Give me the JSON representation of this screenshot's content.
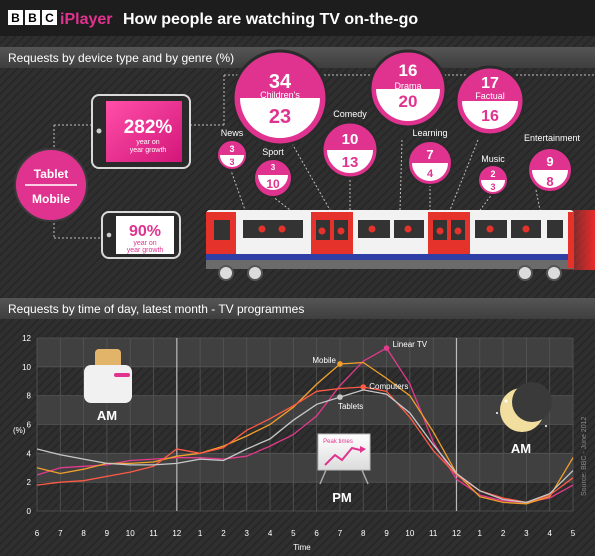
{
  "header": {
    "bbc": [
      "B",
      "B",
      "C"
    ],
    "iplayer": "iPlayer",
    "title": "How people are watching TV on-the-go"
  },
  "section1": {
    "title": "Requests by device type and by genre  (%)",
    "tablet_growth": {
      "value": "282%",
      "caption_1": "year on",
      "caption_2": "year growth"
    },
    "mobile_growth": {
      "value": "90%",
      "caption_1": "year on",
      "caption_2": "year growth"
    },
    "legend": {
      "tablet": "Tablet",
      "mobile": "Mobile"
    }
  },
  "genres": [
    {
      "name": "Children's",
      "tablet": "34",
      "mobile": "23"
    },
    {
      "name": "Drama",
      "tablet": "16",
      "mobile": "20"
    },
    {
      "name": "Factual",
      "tablet": "17",
      "mobile": "16"
    },
    {
      "name": "Comedy",
      "tablet": "10",
      "mobile": "13"
    },
    {
      "name": "News",
      "tablet": "3",
      "mobile": "3"
    },
    {
      "name": "Sport",
      "tablet": "3",
      "mobile": "10"
    },
    {
      "name": "Learning",
      "tablet": "7",
      "mobile": "4"
    },
    {
      "name": "Music",
      "tablet": "2",
      "mobile": "3"
    },
    {
      "name": "Entertainment",
      "tablet": "9",
      "mobile": "8"
    }
  ],
  "section2": {
    "title": "Requests by time of day, latest month - TV programmes",
    "badge_am_left": "AM",
    "badge_pm": "PM",
    "badge_am_right": "AM",
    "peak": "Peak times",
    "source": "Source: BBC - June 2012"
  },
  "colors": {
    "pink": "#e0338f",
    "linear_tv": "#e23a8c",
    "mobile": "#f2a02c",
    "computers": "#ff5a45",
    "tablets": "#c8c8c8"
  },
  "chart_data": {
    "type": "line",
    "xlabel": "Time",
    "ylabel": "(%)",
    "ylim": [
      0,
      12
    ],
    "yticks": [
      "0",
      "2",
      "4",
      "6",
      "8",
      "10",
      "12"
    ],
    "categories": [
      "6",
      "7",
      "8",
      "9",
      "10",
      "11",
      "12",
      "1",
      "2",
      "3",
      "4",
      "5",
      "6",
      "7",
      "8",
      "9",
      "10",
      "11",
      "12",
      "1",
      "2",
      "3",
      "4",
      "5"
    ],
    "series": [
      {
        "name": "Linear TV",
        "color": "#e23a8c",
        "values": [
          2.5,
          3.0,
          3.1,
          3.2,
          3.5,
          3.6,
          3.7,
          3.7,
          3.6,
          3.8,
          4.5,
          5.3,
          6.6,
          8.7,
          10.4,
          11.3,
          8.8,
          4.8,
          2.2,
          1.1,
          0.7,
          0.6,
          0.9,
          1.8
        ]
      },
      {
        "name": "Mobile",
        "color": "#f2a02c",
        "values": [
          3.0,
          2.6,
          2.9,
          3.3,
          3.3,
          3.4,
          3.8,
          4.0,
          4.5,
          5.2,
          6.0,
          7.2,
          8.8,
          10.2,
          10.3,
          9.2,
          8.0,
          5.5,
          2.6,
          1.0,
          0.6,
          0.5,
          1.0,
          3.7
        ]
      },
      {
        "name": "Computers",
        "color": "#ff5a45",
        "values": [
          1.8,
          2.0,
          2.1,
          2.4,
          2.7,
          3.1,
          4.3,
          4.0,
          4.4,
          5.6,
          6.4,
          7.3,
          8.3,
          8.5,
          8.6,
          8.3,
          6.5,
          4.2,
          2.5,
          1.4,
          0.9,
          0.6,
          1.1,
          2.3
        ]
      },
      {
        "name": "Tablets",
        "color": "#c8c8c8",
        "values": [
          4.3,
          3.9,
          3.6,
          3.3,
          3.2,
          3.2,
          3.3,
          3.6,
          3.5,
          4.3,
          5.0,
          6.3,
          7.4,
          7.9,
          8.4,
          8.1,
          6.8,
          4.6,
          2.6,
          1.4,
          0.8,
          0.6,
          1.2,
          2.8
        ]
      }
    ]
  }
}
